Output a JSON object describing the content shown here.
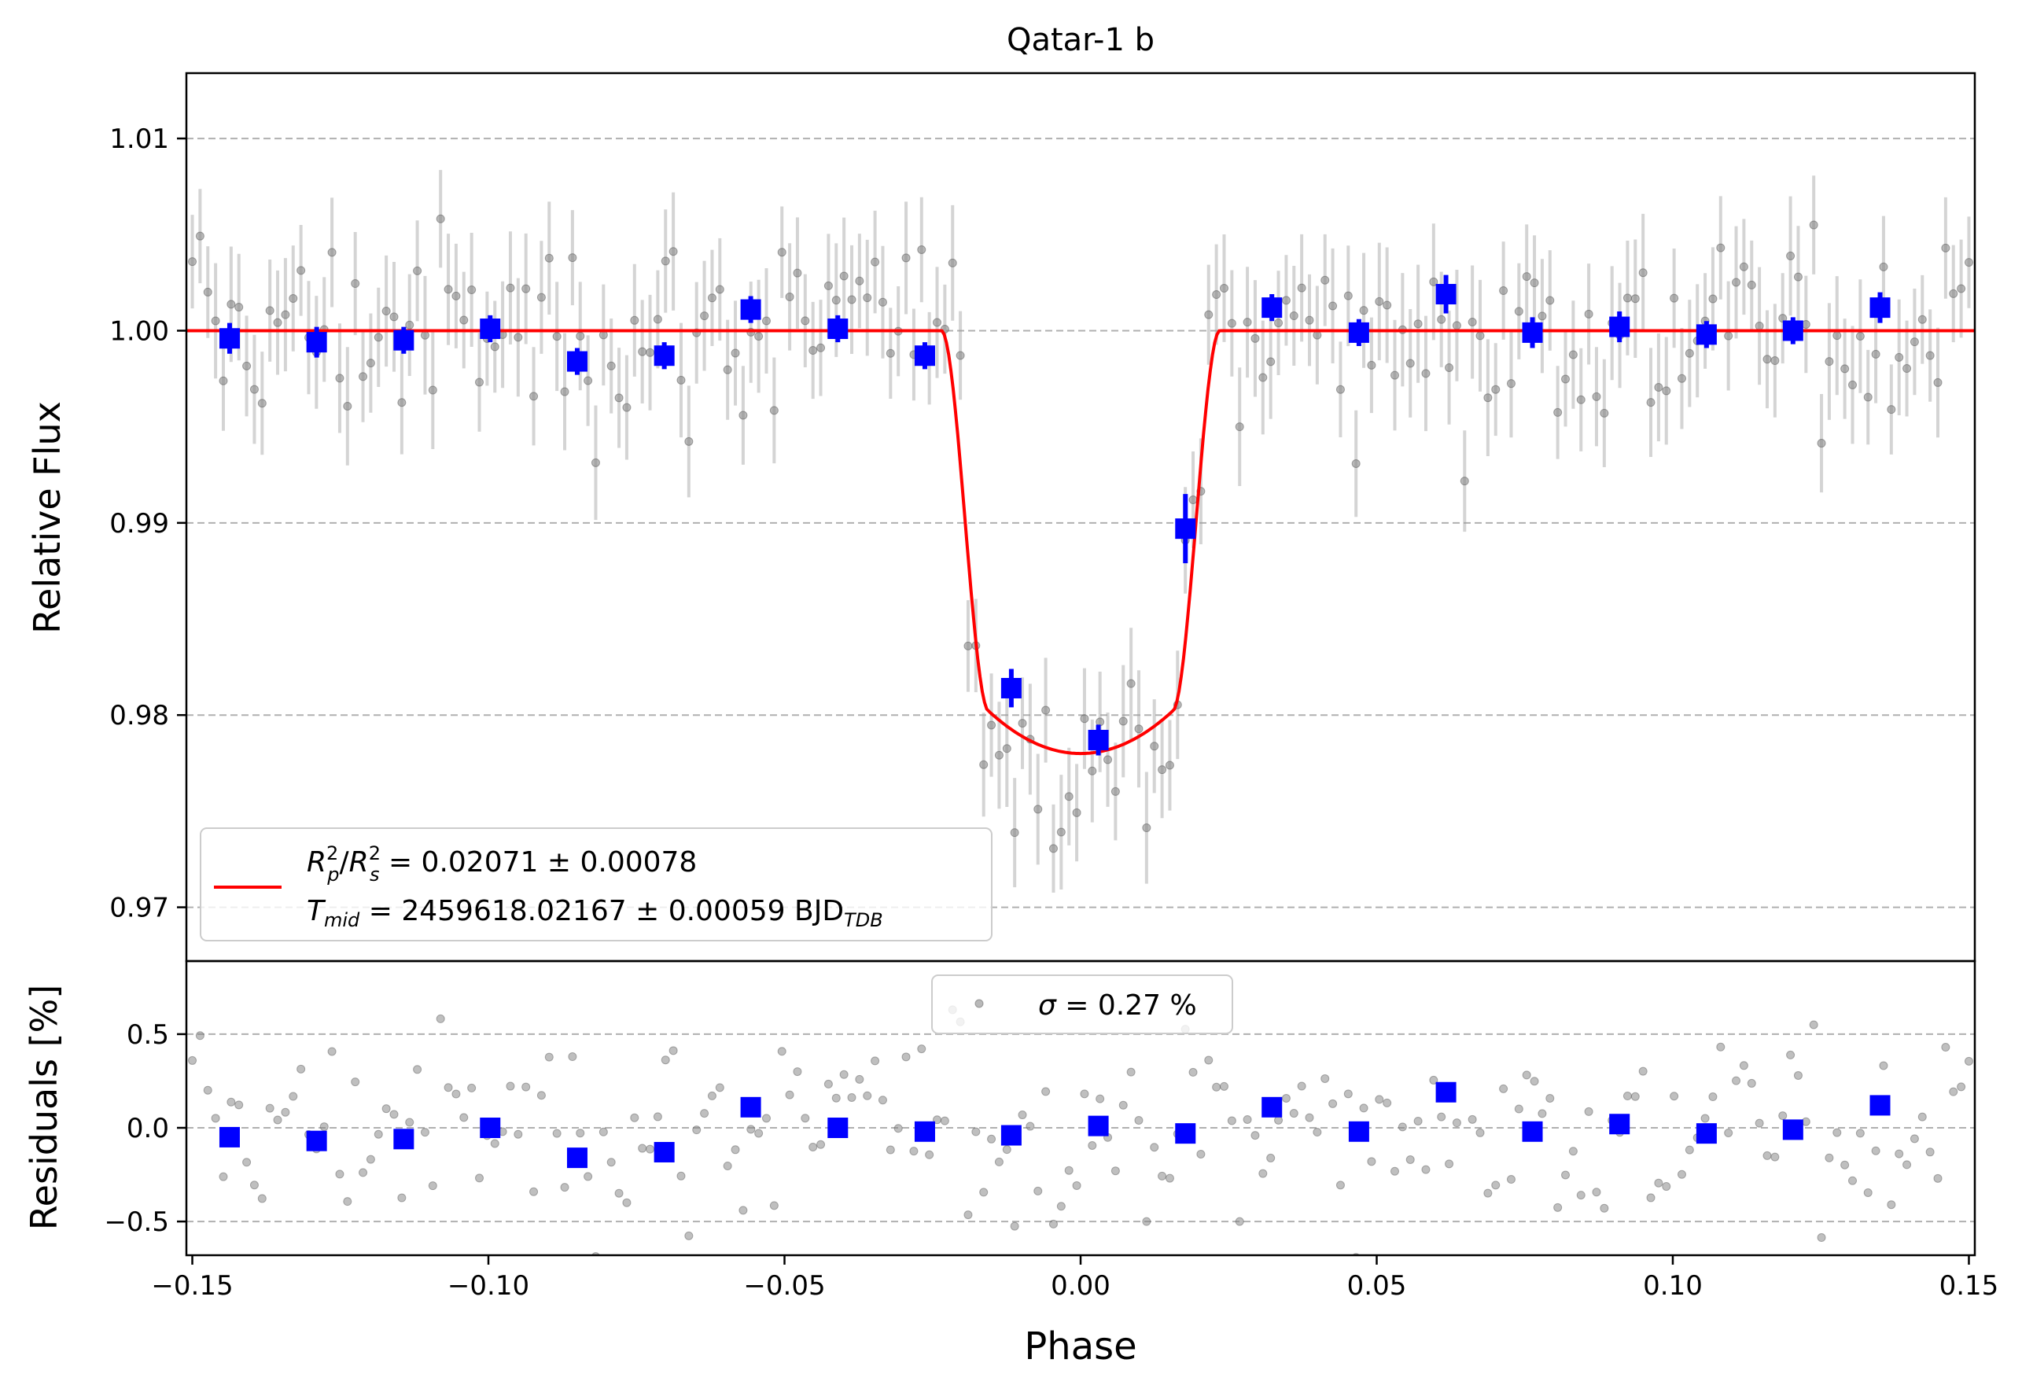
{
  "chart_data": [
    {
      "type": "scatter",
      "panel": "light-curve",
      "title": "Qatar-1 b",
      "xlabel": "",
      "ylabel": "Relative Flux",
      "xlim": [
        -0.151,
        0.151
      ],
      "ylim": [
        0.9672,
        1.0134
      ],
      "grid": "horizontal dashed",
      "yticks": [
        0.97,
        0.98,
        0.99,
        1.0,
        1.01
      ],
      "ytick_labels": [
        "0.97",
        "0.98",
        "0.99",
        "1.00",
        "1.01"
      ],
      "legend": {
        "placement": "lower-left",
        "line1": {
          "pre": "= 0.02071 ± 0.00078"
        },
        "line2": {
          "post": "= 2459618.02167 ± 0.00059 BJD"
        }
      },
      "transit_model": {
        "name": "transit model",
        "color": "#ff0000",
        "baseline": 1.0,
        "depth": 0.02071,
        "half_total_duration": 0.0235,
        "half_full_duration": 0.0155,
        "limb_darkening_min": 0.978
      },
      "binned": {
        "name": "binned data",
        "color": "#0000ff",
        "x": [
          -0.1437,
          -0.129,
          -0.1143,
          -0.0997,
          -0.085,
          -0.0703,
          -0.0557,
          -0.041,
          -0.0263,
          -0.0117,
          0.003,
          0.0177,
          0.0323,
          0.047,
          0.0617,
          0.0763,
          0.091,
          0.1057,
          0.1203,
          0.135
        ],
        "y": [
          0.9996,
          0.9994,
          0.9995,
          1.0001,
          0.9984,
          0.9987,
          1.0011,
          1.0001,
          0.9987,
          0.9814,
          0.9787,
          0.9897,
          1.0012,
          0.9999,
          1.0019,
          0.9999,
          1.0002,
          0.9998,
          1.0,
          1.0012
        ],
        "err": [
          0.0008,
          0.0008,
          0.0007,
          0.0007,
          0.0007,
          0.0007,
          0.0007,
          0.0007,
          0.0007,
          0.001,
          0.0008,
          0.0018,
          0.0007,
          0.0007,
          0.001,
          0.0008,
          0.0008,
          0.0007,
          0.0007,
          0.0008
        ]
      },
      "raw": {
        "name": "unbinned data",
        "color": "#808080",
        "count": 230,
        "typical_error": 0.0027,
        "scatter_sigma": 0.0027
      }
    },
    {
      "type": "scatter",
      "panel": "residuals",
      "xlabel": "Phase",
      "ylabel": "Residuals [%]",
      "xlim": [
        -0.151,
        0.151
      ],
      "ylim": [
        -0.68,
        0.89
      ],
      "grid": "horizontal dashed",
      "xticks": [
        -0.15,
        -0.1,
        -0.05,
        0.0,
        0.05,
        0.1,
        0.15
      ],
      "xtick_labels": [
        "−0.15",
        "−0.10",
        "−0.05",
        "0.00",
        "0.05",
        "0.10",
        "0.15"
      ],
      "yticks": [
        -0.5,
        0.0,
        0.5
      ],
      "ytick_labels": [
        "−0.5",
        "0.0",
        "0.5"
      ],
      "legend": {
        "placement": "top-center",
        "sigma_text": "= 0.27 %"
      },
      "binned_residuals": {
        "color": "#0000ff",
        "x": [
          -0.1437,
          -0.129,
          -0.1143,
          -0.0997,
          -0.085,
          -0.0703,
          -0.0557,
          -0.041,
          -0.0263,
          -0.0117,
          0.003,
          0.0177,
          0.0323,
          0.047,
          0.0617,
          0.0763,
          0.091,
          0.1057,
          0.1203,
          0.135
        ],
        "y": [
          -0.05,
          -0.07,
          -0.06,
          0.0,
          -0.16,
          -0.13,
          0.11,
          0.0,
          -0.02,
          -0.04,
          0.01,
          -0.03,
          0.11,
          -0.02,
          0.19,
          -0.02,
          0.02,
          -0.03,
          -0.01,
          0.12
        ]
      }
    }
  ]
}
